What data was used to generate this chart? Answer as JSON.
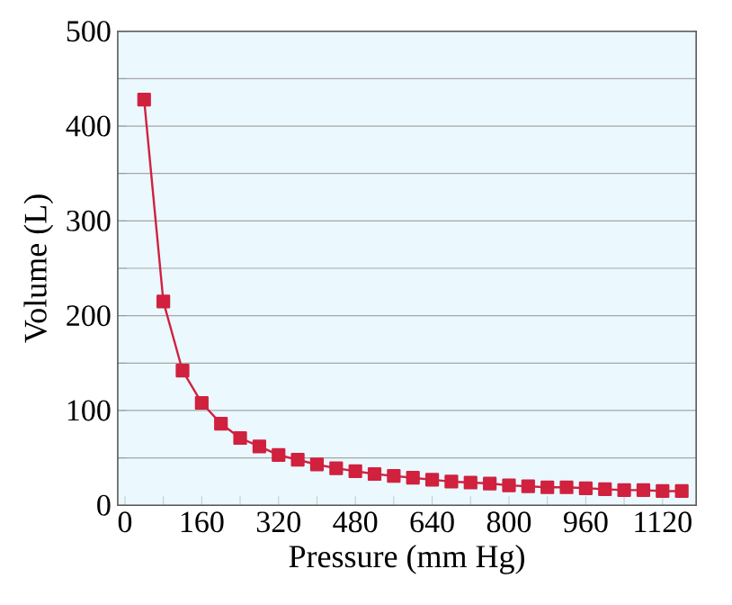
{
  "chart_data": {
    "type": "line",
    "xlabel": "Pressure (mm Hg)",
    "ylabel": "Volume (L)",
    "x": [
      40,
      80,
      120,
      160,
      200,
      240,
      280,
      320,
      360,
      400,
      440,
      480,
      520,
      560,
      600,
      640,
      680,
      720,
      760,
      800,
      840,
      880,
      920,
      960,
      1000,
      1040,
      1080,
      1120,
      1160
    ],
    "series": [
      {
        "color": "#d0213f",
        "values": [
          428,
          215,
          142,
          108,
          86,
          71,
          62,
          53,
          48,
          43,
          39,
          36,
          33,
          31,
          29,
          27,
          25,
          24,
          23,
          21,
          20,
          19,
          19,
          18,
          17,
          16,
          16,
          15,
          15
        ]
      }
    ],
    "xlim": [
      -15,
      1190
    ],
    "ylim": [
      0,
      500
    ],
    "xticks": [
      0,
      {
        "value": 80,
        "label": null
      },
      160,
      {
        "value": 240,
        "label": null
      },
      320,
      {
        "value": 400,
        "label": null
      },
      480,
      {
        "value": 560,
        "label": null
      },
      640,
      {
        "value": 720,
        "label": null
      },
      800,
      {
        "value": 880,
        "label": null
      },
      960,
      {
        "value": 1040,
        "label": null
      },
      1120
    ],
    "yticks": [
      0,
      {
        "value": 50,
        "label": null
      },
      100,
      {
        "value": 150,
        "label": null
      },
      200,
      {
        "value": 250,
        "label": null
      },
      300,
      {
        "value": 350,
        "label": null
      },
      400,
      {
        "value": 450,
        "label": null
      },
      500
    ],
    "grid": "y",
    "marker": "square",
    "line_style": "solid"
  }
}
